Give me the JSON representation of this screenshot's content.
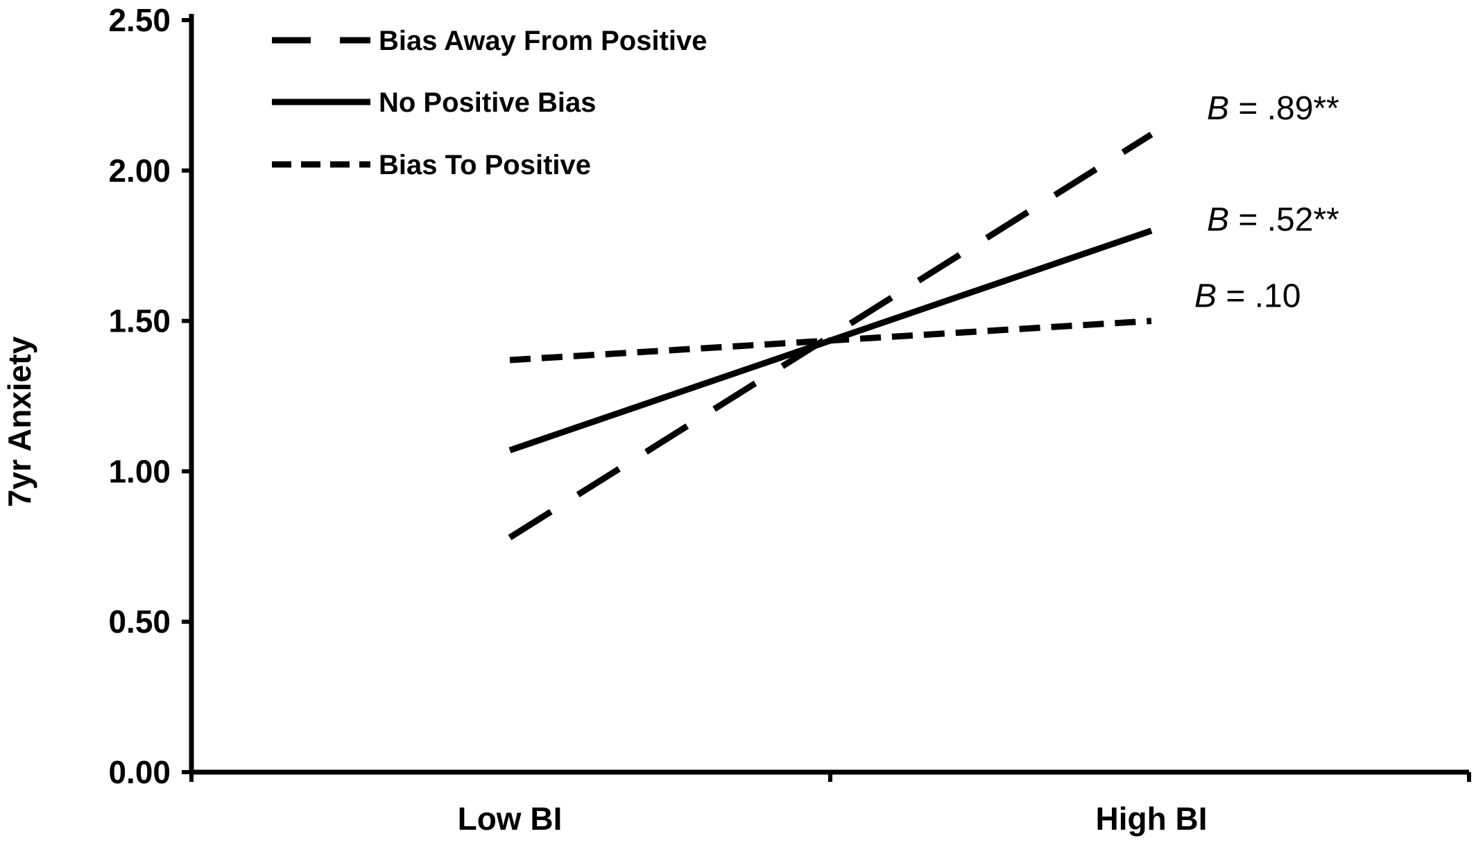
{
  "chart_data": {
    "type": "line",
    "title": "",
    "xlabel": "",
    "ylabel": "7yr Anxiety",
    "categories": [
      "Low BI",
      "High BI"
    ],
    "ylim": [
      0,
      2.5
    ],
    "yticks": [
      "0.00",
      "0.50",
      "1.00",
      "1.50",
      "2.00",
      "2.50"
    ],
    "grid": false,
    "legend_position": "top-left",
    "series": [
      {
        "name": "Bias Away From Positive",
        "style": "long-dash",
        "values": [
          0.78,
          2.12
        ],
        "annotation": ".89**"
      },
      {
        "name": "No Positive Bias",
        "style": "solid",
        "values": [
          1.07,
          1.8
        ],
        "annotation": ".52**"
      },
      {
        "name": "Bias To Positive",
        "style": "short-dash",
        "values": [
          1.37,
          1.5
        ],
        "annotation": ".10"
      }
    ],
    "annotation_prefix": "B",
    "annotation_equals": " = "
  },
  "colors": {
    "line": "#000000",
    "background": "#ffffff"
  }
}
